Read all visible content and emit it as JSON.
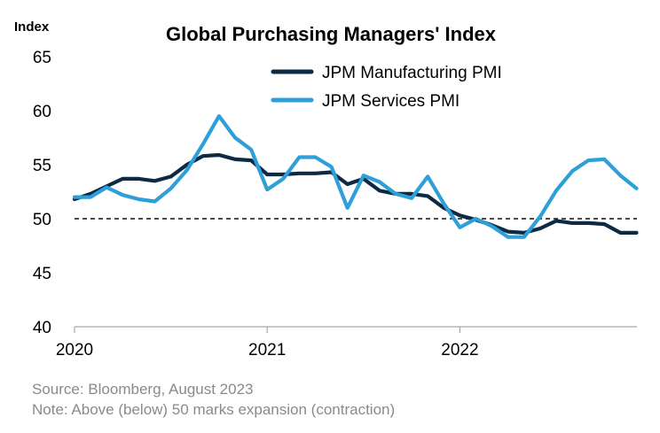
{
  "chart_data": {
    "type": "line",
    "title": "Global Purchasing Managers' Index",
    "ylabel": "Index",
    "xlabel": "",
    "ylim": [
      40,
      65
    ],
    "yticks": [
      40,
      45,
      50,
      55,
      60,
      65
    ],
    "xticks": [
      {
        "label": "2020",
        "x": 0
      },
      {
        "label": "2021",
        "x": 12
      },
      {
        "label": "2022",
        "x": 24
      }
    ],
    "xlim": [
      0,
      35
    ],
    "reference_line": {
      "y": 50,
      "style": "dashed",
      "color": "#333333"
    },
    "legend_position": "top-right",
    "series": [
      {
        "name": "JPM Manufacturing PMI",
        "color": "#0d2a45",
        "values": [
          51.8,
          52.3,
          53.0,
          53.7,
          53.7,
          53.5,
          53.9,
          55.0,
          55.8,
          55.9,
          55.5,
          55.4,
          54.1,
          54.1,
          54.2,
          54.2,
          54.3,
          53.2,
          53.7,
          52.6,
          52.3,
          52.3,
          52.1,
          51.0,
          50.3,
          49.9,
          49.4,
          48.8,
          48.7,
          49.1,
          49.8,
          49.6,
          49.6,
          49.5,
          48.7,
          48.7
        ]
      },
      {
        "name": "JPM Services PMI",
        "color": "#2e9fd8",
        "values": [
          52.0,
          52.0,
          52.9,
          52.2,
          51.8,
          51.6,
          52.8,
          54.5,
          56.9,
          59.5,
          57.5,
          56.4,
          52.7,
          53.7,
          55.7,
          55.7,
          54.8,
          51.0,
          54.0,
          53.4,
          52.3,
          51.9,
          53.9,
          51.4,
          49.2,
          50.0,
          49.3,
          48.3,
          48.3,
          50.2,
          52.6,
          54.4,
          55.4,
          55.5,
          54.0,
          52.8
        ]
      }
    ]
  },
  "source_lines": [
    "Source: Bloomberg, August 2023",
    "Note: Above (below) 50 marks expansion (contraction)"
  ]
}
